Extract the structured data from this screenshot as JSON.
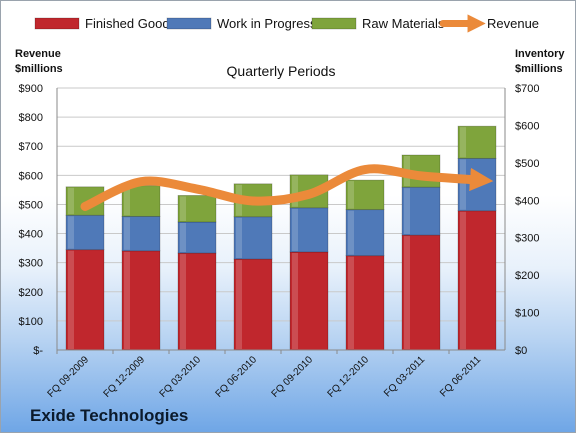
{
  "company": "Exide Technologies",
  "colors": {
    "finished": "#c0272d",
    "wip": "#4f79b8",
    "raw": "#7fa43c",
    "revenue": "#eb8a3a",
    "grid": "#c9c9c9"
  },
  "chart_data": {
    "type": "bar",
    "stacked": true,
    "secondary_line": "Revenue",
    "title": "",
    "subtitle": "Quarterly Periods",
    "left_axis_title_line1": "Revenue",
    "left_axis_title_line2": "$millions",
    "right_axis_title_line1": "Inventory",
    "right_axis_title_line2": "$millions",
    "left_ylim": [
      0,
      900
    ],
    "right_ylim": [
      0,
      700
    ],
    "left_ticks": [
      "$-",
      "$100",
      "$200",
      "$300",
      "$400",
      "$500",
      "$600",
      "$700",
      "$800",
      "$900"
    ],
    "right_ticks": [
      "$0",
      "$100",
      "$200",
      "$300",
      "$400",
      "$500",
      "$600",
      "$700"
    ],
    "grid": true,
    "legend_position": "top",
    "categories": [
      "FQ 09-2009",
      "FQ 12-2009",
      "FQ 03-2010",
      "FQ 06-2010",
      "FQ 09-2010",
      "FQ 12-2010",
      "FQ 03-2011",
      "FQ 06-2011"
    ],
    "series": [
      {
        "name": "Finished Goods",
        "axis": "right",
        "values": [
          268,
          265,
          259,
          243,
          262,
          252,
          307,
          372
        ]
      },
      {
        "name": "Work in Progress",
        "axis": "right",
        "values": [
          92,
          92,
          83,
          113,
          118,
          123,
          128,
          140
        ]
      },
      {
        "name": "Raw Materials",
        "axis": "right",
        "values": [
          76,
          82,
          71,
          88,
          88,
          79,
          86,
          86
        ]
      },
      {
        "name": "Revenue",
        "axis": "left",
        "type": "line",
        "values": [
          493,
          578,
          553,
          512,
          535,
          620,
          598,
          584
        ]
      }
    ]
  }
}
